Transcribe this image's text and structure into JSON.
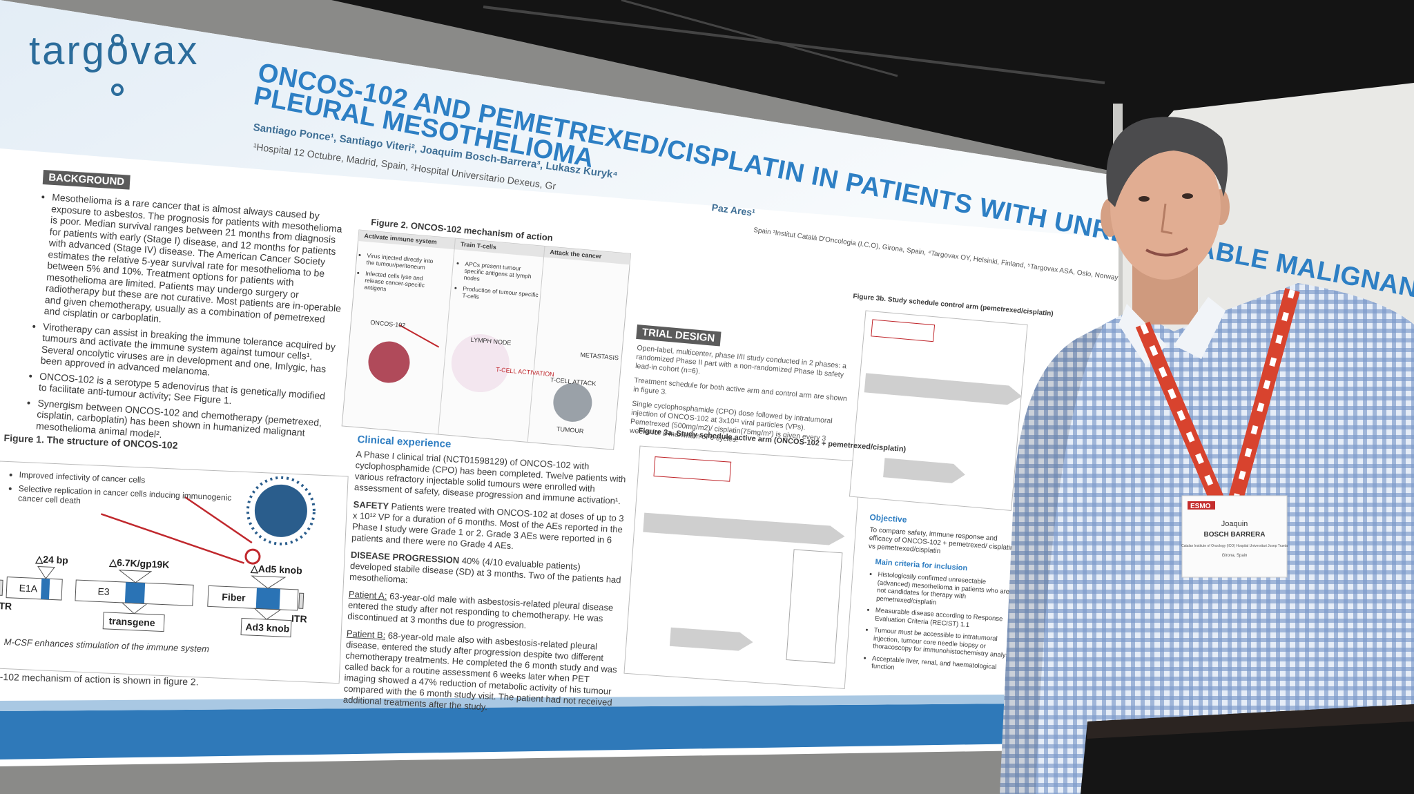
{
  "poster": {
    "logo": "targovax",
    "title_lines": [
      "ONCOS-102 AND PEMETREXED/CISPLATIN IN PATIENTS WITH UNRESECTABLE MALIGNANT",
      "PLEURAL MESOTHELIOMA"
    ],
    "authors": "Santiago Ponce¹, Santiago Viteri², Joaquim Bosch-Barrera³, Lukasz Kuryk⁴",
    "affiliations": "¹Hospital 12 Octubre, Madrid, Spain, ²Hospital Universitario Dexeus, Gr",
    "author_last": "Paz Ares¹",
    "affiliations_2": "Spain ³Institut Català D'Oncologia (I.C.O), Girona, Spain, ⁴Targovax OY, Helsinki, Finland, ⁵Targovax ASA, Oslo, Norway",
    "background": {
      "heading": "BACKGROUND",
      "bullets": [
        "Mesothelioma is a rare cancer that is almost always caused by exposure to asbestos. The prognosis for patients with mesothelioma is poor. Median survival ranges between 21 months from diagnosis for patients with early (Stage I) disease, and 12 months for patients with advanced (Stage IV) disease. The American Cancer Society estimates the relative 5-year survival rate for mesothelioma to be between 5% and 10%. Treatment options for patients with mesothelioma are limited. Patients may undergo surgery or radiotherapy but these are not curative. Most patients are in-operable and given chemotherapy, usually as a combination of pemetrexed and cisplatin or carboplatin.",
        "Virotherapy can assist in breaking the immune tolerance acquired by tumours and activate the immune system against tumour cells¹. Several oncolytic viruses are in development and one, Imlygic, has been approved in advanced melanoma.",
        "ONCOS-102 is a serotype 5 adenovirus that is genetically modified to facilitate anti-tumour activity; See Figure 1.",
        "Synergism between ONCOS-102 and chemotherapy (pemetrexed, cisplatin, carboplatin) has been shown in humanized malignant mesothelioma animal model²."
      ]
    },
    "figure1": {
      "title": "Figure 1. The structure of ONCOS-102",
      "notes": [
        "Improved infectivity of cancer cells",
        "Selective replication in cancer cells inducing immunogenic cancer cell death"
      ],
      "deletions": [
        "△24 bp",
        "△6.7K/gp19K",
        "△Ad5 knob"
      ],
      "genes": [
        "E1A",
        "E3",
        "Fiber"
      ],
      "inserts": [
        "transgene",
        "Ad3 knob"
      ],
      "itr": "ITR",
      "caption": "M-CSF enhances stimulation of the immune system",
      "footer": "-102 mechanism of action is shown in figure 2."
    },
    "figure2": {
      "title": "Figure 2. ONCOS-102 mechanism of action",
      "columns": [
        "Activate immune system",
        "Train T-cells",
        "Attack the cancer"
      ],
      "col1": [
        "Virus injected directly into the tumour/peritoneum",
        "Infected cells lyse and release cancer-specific antigens"
      ],
      "col2": [
        "APCs present tumour specific antigens at lymph nodes",
        "Production of tumour specific T-cells"
      ],
      "labels": [
        "ONCOS-102",
        "LYMPH NODE",
        "T-CELL ACTIVATION",
        "METASTASIS",
        "T-CELL ATTACK",
        "TUMOUR"
      ]
    },
    "clinical": {
      "heading": "Clinical experience",
      "intro": "A Phase I clinical trial (NCT01598129) of ONCOS-102 with cyclophosphamide (CPO) has been completed. Twelve patients with various refractory injectable solid tumours were enrolled with assessment of safety, disease progression and immune activation¹.",
      "items": [
        {
          "label": "SAFETY",
          "text": "Patients were treated with ONCOS-102 at doses of up to 3 x 10¹² VP for a duration of 6 months. Most of the AEs reported in the Phase I study were Grade 1 or 2. Grade 3 AEs were reported in 6 patients and there were no Grade 4 AEs."
        },
        {
          "label": "DISEASE PROGRESSION",
          "text": "40% (4/10 evaluable patients) developed stabile disease (SD) at 3 months. Two of the patients had mesothelioma:"
        },
        {
          "label": "Patient A:",
          "text": "63-year-old male with asbestosis-related pleural disease entered the study after not responding to chemotherapy. He was discontinued at 3 months due to progression."
        },
        {
          "label": "Patient B:",
          "text": "68-year-old male also with asbestosis-related pleural disease, entered the study after progression despite two different chemotherapy treatments. He completed the 6 month study and was called back for a routine assessment 6 weeks later when PET imaging showed a 47% reduction of metabolic activity of his tumour compared with the 6 month study visit. The patient had not received additional treatments after the study."
        }
      ]
    },
    "trial_design": {
      "heading": "TRIAL DESIGN",
      "paragraphs": [
        "Open-label, multicenter, phase I/II study conducted in 2 phases: a randomized Phase II part with a non-randomized Phase Ib safety lead-in cohort (n=6).",
        "Treatment schedule for both active arm and control arm are shown in figure 3.",
        "Single cyclophosphamide (CPO) dose followed by intratumoral injection of ONCOS-102 at 3x10¹¹ viral particles (VPs). Pemetrexed (500mg/m2)/ cisplatin(75mg/m²) is given every 3 weeks for a maximum of 6 cycles."
      ]
    },
    "figure3a": {
      "title": "Figure 3a. Study schedule active arm (ONCOS-102 + pemetrexed/cisplatin)"
    },
    "figure3b": {
      "title": "Figure 3b. Study schedule control arm (pemetrexed/cisplatin)"
    },
    "objective": {
      "heading": "Objective",
      "text": "To compare safety, immune response and efficacy of ONCOS-102 + pemetrexed/ cisplatin vs pemetrexed/cisplatin"
    },
    "inclusion": {
      "heading": "Main criteria for inclusion",
      "bullets": [
        "Histologically confirmed unresectable (advanced) mesothelioma in patients who are not candidates for therapy with pemetrexed/cisplatin",
        "Measurable disease according to Response Evaluation Criteria (RECIST) 1.1",
        "Tumour must be accessible to intratumoral injection, tumour core needle biopsy or thoracoscopy for immunohistochemistry analysis",
        "Acceptable liver, renal, and haematological function"
      ]
    }
  },
  "badge": {
    "event": "ESMO",
    "first_name": "Joaquin",
    "surname": "BOSCH BARRERA",
    "institution": "Catalan Institute of Oncology (ICO) Hospital Universitari Josep Trueta",
    "city": "Girona, Spain"
  }
}
